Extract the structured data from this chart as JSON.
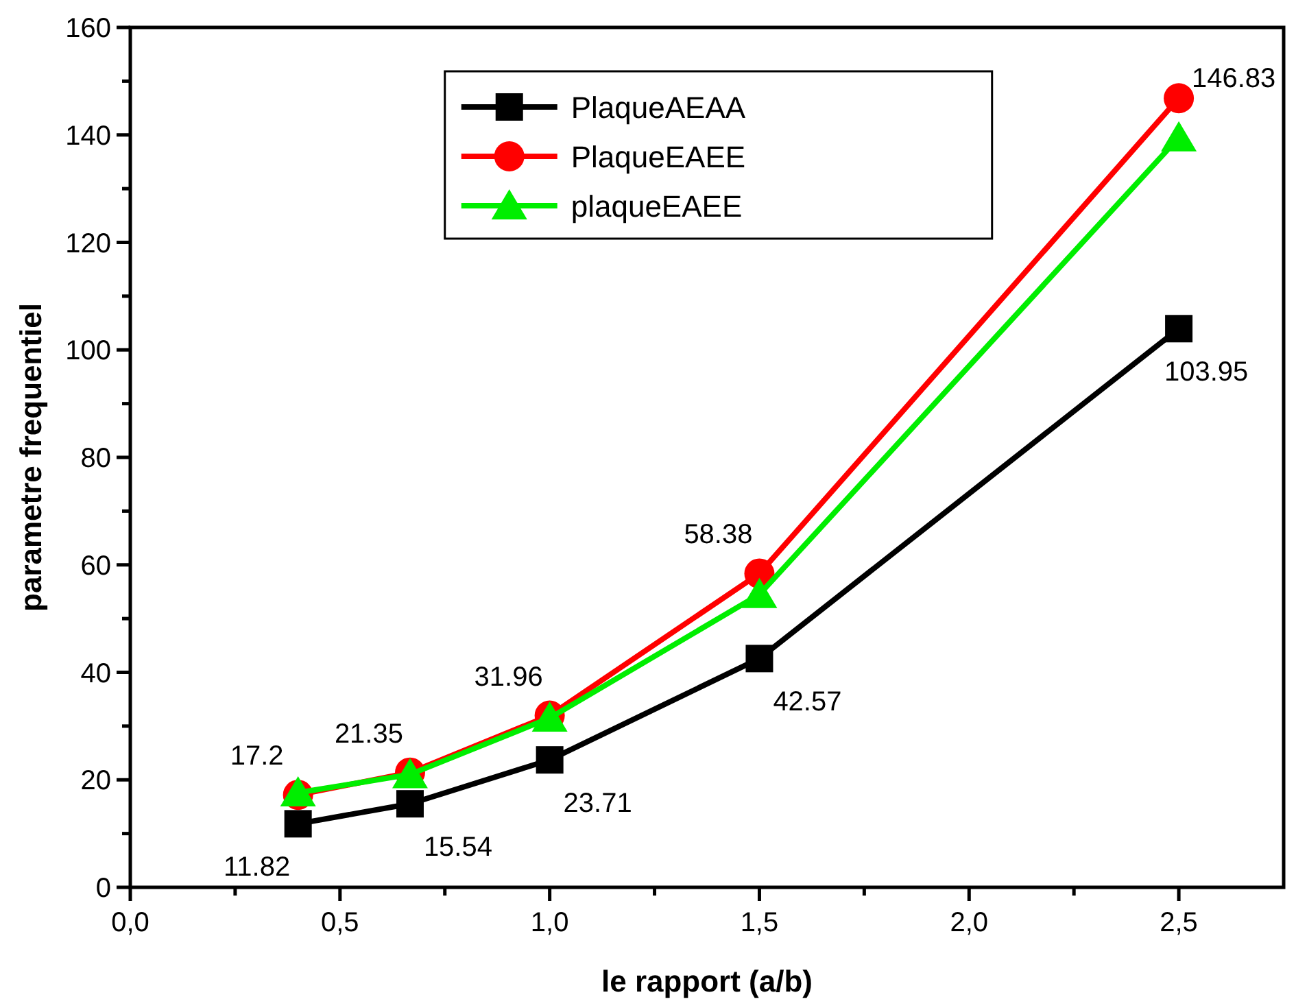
{
  "chart_data": {
    "type": "line",
    "xlabel": "le rapport (a/b)",
    "ylabel": "parametre frequentiel",
    "x": [
      0.4,
      0.667,
      1.0,
      1.5,
      2.5
    ],
    "series": [
      {
        "name": "PlaqueAEAA",
        "color": "#000000",
        "marker": "square",
        "values": [
          11.82,
          15.54,
          23.71,
          42.57,
          103.95
        ],
        "value_labels": [
          "11.82",
          "15.54",
          "23.71",
          "42.57",
          "103.95"
        ]
      },
      {
        "name": "PlaqueEAEE",
        "color": "#ff0000",
        "marker": "circle",
        "values": [
          17.2,
          21.35,
          31.96,
          58.38,
          146.83
        ],
        "value_labels": [
          "17.2",
          "21.35",
          "31.96",
          "58.38",
          "146.83"
        ]
      },
      {
        "name": "plaqueEAEE",
        "color": "#00ee00",
        "marker": "triangle",
        "values": [
          17.6,
          21,
          31.5,
          54.5,
          139.5
        ]
      }
    ],
    "xlim": [
      0,
      2.75
    ],
    "xticks": [
      {
        "value": 0,
        "label": "0,0"
      },
      {
        "value": 0.25,
        "label": null
      },
      {
        "value": 0.5,
        "label": "0,5"
      },
      {
        "value": 0.75,
        "label": null
      },
      {
        "value": 1,
        "label": "1,0"
      },
      {
        "value": 1.25,
        "label": null
      },
      {
        "value": 1.5,
        "label": "1,5"
      },
      {
        "value": 1.75,
        "label": null
      },
      {
        "value": 2,
        "label": "2,0"
      },
      {
        "value": 2.25,
        "label": null
      },
      {
        "value": 2.5,
        "label": "2,5"
      }
    ],
    "ylim": [
      0,
      160
    ],
    "yticks": [
      0,
      {
        "value": 10,
        "label": null
      },
      20,
      {
        "value": 30,
        "label": null
      },
      40,
      {
        "value": 50,
        "label": null
      },
      60,
      {
        "value": 70,
        "label": null
      },
      80,
      {
        "value": 90,
        "label": null
      },
      100,
      {
        "value": 110,
        "label": null
      },
      120,
      {
        "value": 130,
        "label": null
      },
      140,
      {
        "value": 150,
        "label": null
      },
      160
    ],
    "grid": false,
    "legend": "top left",
    "line_style": "solid"
  }
}
